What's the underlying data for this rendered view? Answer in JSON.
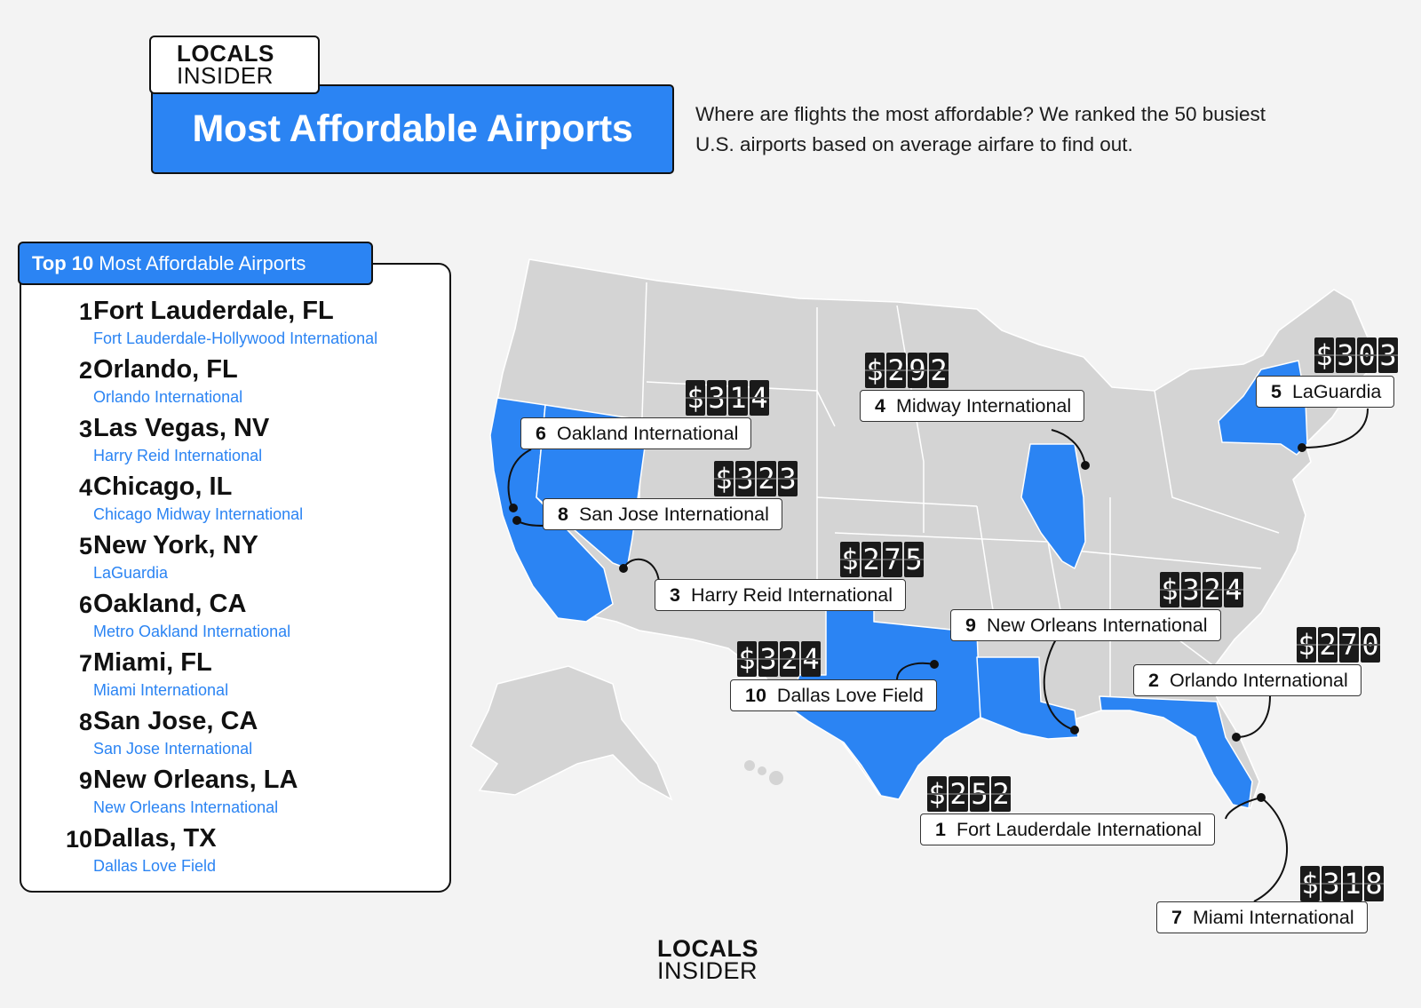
{
  "brand": {
    "line1": "LOCALS",
    "line2": "INSIDER"
  },
  "header": {
    "title": "Most Affordable Airports",
    "subtitle": "Where are flights the most affordable? We ranked the 50 busiest U.S. airports based on average airfare to find out."
  },
  "list": {
    "tab_bold": "Top 10",
    "tab_rest": "Most Affordable Airports",
    "items": [
      {
        "rank": "1",
        "city": "Fort Lauderdale, FL",
        "airport": "Fort Lauderdale-Hollywood International"
      },
      {
        "rank": "2",
        "city": "Orlando, FL",
        "airport": "Orlando International"
      },
      {
        "rank": "3",
        "city": "Las Vegas, NV",
        "airport": "Harry Reid International"
      },
      {
        "rank": "4",
        "city": "Chicago, IL",
        "airport": "Chicago Midway International"
      },
      {
        "rank": "5",
        "city": "New York, NY",
        "airport": "LaGuardia"
      },
      {
        "rank": "6",
        "city": "Oakland, CA",
        "airport": "Metro Oakland International"
      },
      {
        "rank": "7",
        "city": "Miami, FL",
        "airport": "Miami International"
      },
      {
        "rank": "8",
        "city": "San Jose, CA",
        "airport": "San Jose International"
      },
      {
        "rank": "9",
        "city": "New Orleans, LA",
        "airport": "New Orleans International"
      },
      {
        "rank": "10",
        "city": "Dallas, TX",
        "airport": "Dallas Love Field"
      }
    ]
  },
  "map": {
    "highlight_color": "#2b84f3",
    "base_color": "#d4d4d4",
    "callouts": [
      {
        "rank": "1",
        "label": "Fort Lauderdale International",
        "price": "$252"
      },
      {
        "rank": "2",
        "label": "Orlando International",
        "price": "$270"
      },
      {
        "rank": "3",
        "label": "Harry Reid International",
        "price": "$275"
      },
      {
        "rank": "4",
        "label": "Midway International",
        "price": "$292"
      },
      {
        "rank": "5",
        "label": "LaGuardia",
        "price": "$303"
      },
      {
        "rank": "6",
        "label": "Oakland International",
        "price": "$314"
      },
      {
        "rank": "7",
        "label": "Miami International",
        "price": "$318"
      },
      {
        "rank": "8",
        "label": "San Jose International",
        "price": "$323"
      },
      {
        "rank": "9",
        "label": "New Orleans International",
        "price": "$324"
      },
      {
        "rank": "10",
        "label": "Dallas Love Field",
        "price": "$324"
      }
    ]
  }
}
